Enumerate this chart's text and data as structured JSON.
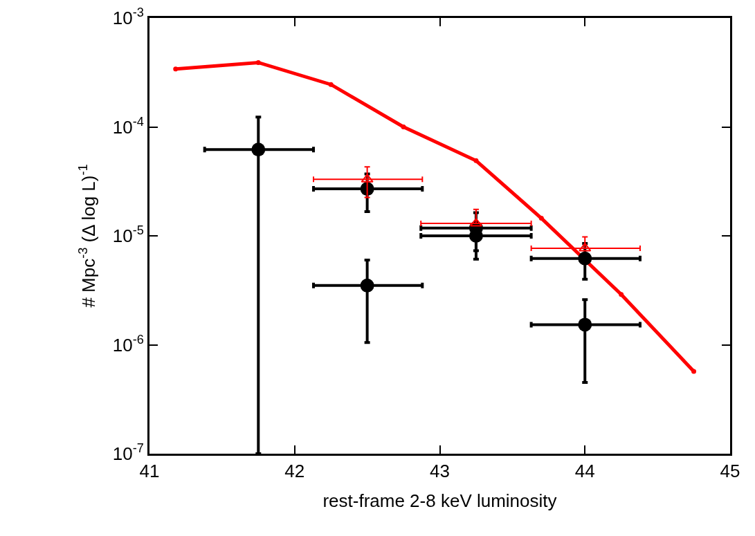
{
  "chart_data": {
    "type": "scatter",
    "xlabel": "rest-frame 2-8 keV luminosity",
    "ylabel": "# Mpc$^{-3}$ (Δ log L)$^{-1}$",
    "log": "y",
    "grid": false,
    "xlim": [
      41,
      45
    ],
    "xticks": [
      41,
      42,
      43,
      44,
      45
    ],
    "ylim": [
      1e-07,
      0.001
    ],
    "yticks": [
      {
        "value": 1e-07,
        "label": "10$^{-7}$"
      },
      {
        "value": 1e-06,
        "label": "10$^{-6}$"
      },
      {
        "value": 1e-05,
        "label": "10$^{-5}$"
      },
      {
        "value": 0.0001,
        "label": "10$^{-4}$"
      },
      {
        "value": 0.001,
        "label": "10$^{-3}$"
      }
    ],
    "series": [
      {
        "type": "line",
        "color": "#ff0000",
        "marker": "circle",
        "line_style": "solid",
        "x": [
          41.18,
          41.75,
          42.25,
          42.75,
          43.25,
          43.7,
          44.25,
          44.75
        ],
        "values": [
          0.00034,
          0.00039,
          0.000245,
          0.0001,
          4.9e-05,
          1.45e-05,
          2.9e-06,
          5.7e-07
        ]
      },
      {
        "type": "scatter",
        "color": "#000000",
        "marker": "circle",
        "x": [
          41.75,
          42.5,
          42.5,
          43.25,
          43.25,
          44.0,
          44.0
        ],
        "values": [
          6.2e-05,
          2.7e-05,
          3.5e-06,
          1e-05,
          1.18e-05,
          6.2e-06,
          1.53e-06
        ],
        "errors": [
          [
            1e-07,
            0.000123
          ],
          [
            1.67e-05,
            3.7e-05
          ],
          [
            1.05e-06,
            6e-06
          ],
          [
            6.1e-06,
            1e-05
          ],
          [
            7.3e-06,
            1.63e-05
          ],
          [
            4e-06,
            8.5e-06
          ],
          [
            4.5e-07,
            2.6e-06
          ]
        ],
        "xerrors": [
          [
            41.38,
            42.13
          ],
          [
            42.13,
            42.88
          ],
          [
            42.13,
            42.88
          ],
          [
            42.87,
            43.63
          ],
          [
            42.87,
            43.63
          ],
          [
            43.63,
            44.38
          ],
          [
            43.63,
            44.38
          ]
        ]
      },
      {
        "type": "scatter",
        "color": "#ff0000",
        "marker": "triangle",
        "x": [
          42.5,
          43.25,
          44.0
        ],
        "values": [
          3.3e-05,
          1.3e-05,
          7.7e-06
        ],
        "errors": [
          [
            2.25e-05,
            4.3e-05
          ],
          [
            1.3e-05,
            1.75e-05
          ],
          [
            7.7e-06,
            9.8e-06
          ]
        ],
        "xerrors": [
          [
            42.13,
            42.88
          ],
          [
            42.87,
            43.63
          ],
          [
            43.63,
            44.38
          ]
        ]
      }
    ]
  }
}
